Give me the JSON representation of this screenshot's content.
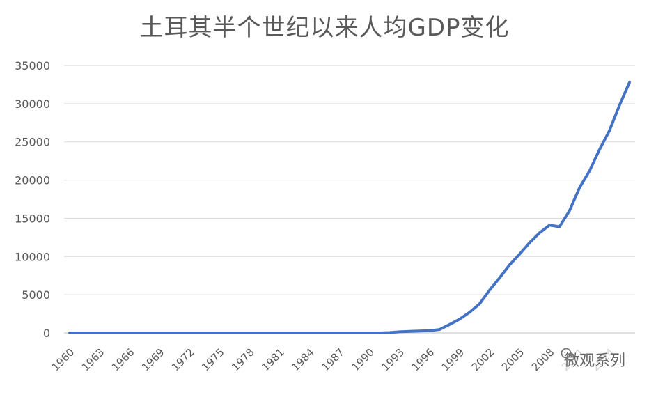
{
  "chart_data": {
    "type": "line",
    "title": "土耳其半个世纪以来人均GDP变化",
    "xlabel": "",
    "ylabel": "",
    "ylim": [
      0,
      35000
    ],
    "yticks": [
      "0",
      "5000",
      "10000",
      "15000",
      "20000",
      "25000",
      "30000",
      "35000"
    ],
    "x": [
      "1960",
      "1961",
      "1962",
      "1963",
      "1964",
      "1965",
      "1966",
      "1967",
      "1968",
      "1969",
      "1970",
      "1971",
      "1972",
      "1973",
      "1974",
      "1975",
      "1976",
      "1977",
      "1978",
      "1979",
      "1980",
      "1981",
      "1982",
      "1983",
      "1984",
      "1985",
      "1986",
      "1987",
      "1988",
      "1989",
      "1990",
      "1991",
      "1992",
      "1993",
      "1994",
      "1995",
      "1996",
      "1997",
      "1998",
      "1999",
      "2000",
      "2001",
      "2002",
      "2003",
      "2004",
      "2005",
      "2006",
      "2007",
      "2008",
      "2009",
      "2010",
      "2011",
      "2012",
      "2013",
      "2014",
      "2015",
      "2016"
    ],
    "xtick_labels": [
      "1960",
      "1963",
      "1966",
      "1969",
      "1972",
      "1975",
      "1978",
      "1981",
      "1984",
      "1987",
      "1990",
      "1993",
      "1996",
      "1999",
      "2002",
      "2005",
      "2008",
      "2011",
      "2014"
    ],
    "series": [
      {
        "values": [
          0,
          0,
          0,
          0,
          0,
          0,
          0,
          0,
          0,
          0,
          0,
          0,
          0,
          0,
          0,
          0,
          0,
          0,
          0,
          0,
          0,
          0,
          0,
          0,
          0,
          0,
          0,
          0,
          0,
          0,
          0,
          0,
          50,
          150,
          200,
          250,
          300,
          450,
          1100,
          1800,
          2700,
          3800,
          5600,
          7200,
          8900,
          10300,
          11800,
          13100,
          14100,
          13900,
          16000,
          19000,
          21200,
          24000,
          26500,
          29800,
          32800
        ]
      }
    ],
    "line_color": "#4472C4",
    "grid": true
  },
  "watermark": {
    "text": "微观系列"
  }
}
